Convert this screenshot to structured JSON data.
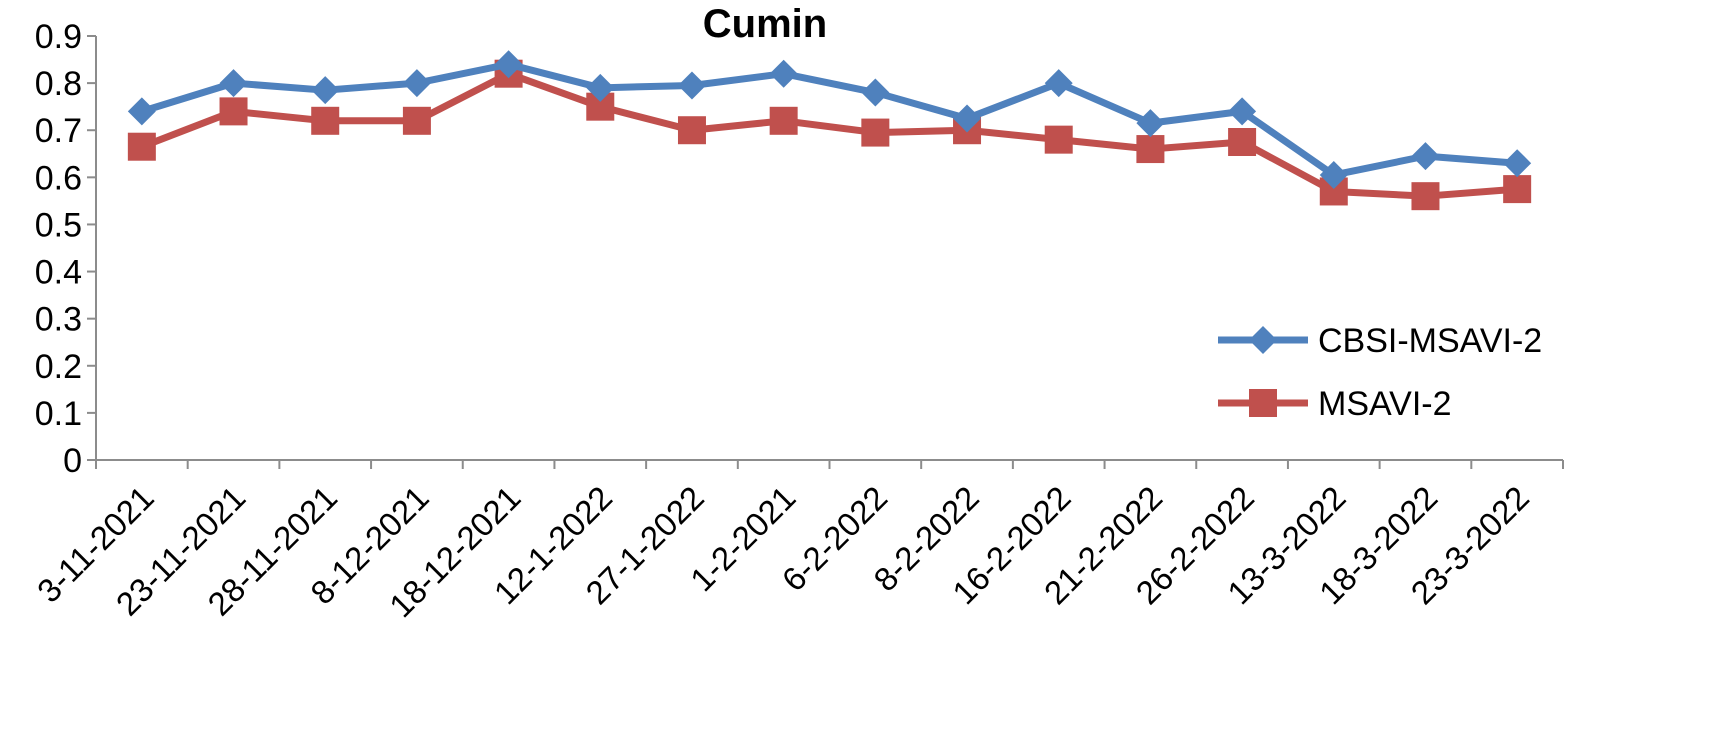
{
  "chart_data": {
    "type": "line",
    "title": "Cumin",
    "xlabel": "",
    "ylabel": "",
    "ylim": [
      0,
      0.9
    ],
    "yticks": [
      "0",
      "0.1",
      "0.2",
      "0.3",
      "0.4",
      "0.5",
      "0.6",
      "0.7",
      "0.8",
      "0.9"
    ],
    "grid": false,
    "legend_position": "right",
    "categories": [
      "3-11-2021",
      "23-11-2021",
      "28-11-2021",
      "8-12-2021",
      "18-12-2021",
      "12-1-2022",
      "27-1-2022",
      "1-2-2021",
      "6-2-2022",
      "8-2-2022",
      "16-2-2022",
      "21-2-2022",
      "26-2-2022",
      "13-3-2022",
      "18-3-2022",
      "23-3-2022"
    ],
    "series": [
      {
        "name": "CBSI-MSAVI-2",
        "color": "#4F81BD",
        "marker": "diamond",
        "values": [
          0.74,
          0.8,
          0.785,
          0.8,
          0.84,
          0.79,
          0.795,
          0.82,
          0.78,
          0.725,
          0.8,
          0.715,
          0.74,
          0.605,
          0.645,
          0.63
        ]
      },
      {
        "name": "MSAVI-2",
        "color": "#C0504D",
        "marker": "square",
        "values": [
          0.665,
          0.74,
          0.72,
          0.72,
          0.82,
          0.75,
          0.7,
          0.72,
          0.695,
          0.7,
          0.68,
          0.66,
          0.675,
          0.57,
          0.56,
          0.575
        ]
      }
    ]
  }
}
